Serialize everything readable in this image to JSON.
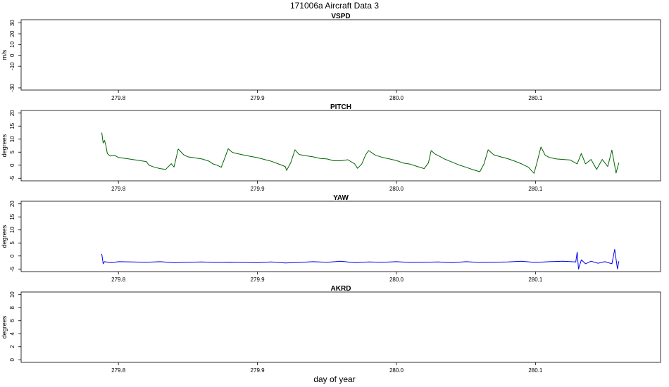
{
  "figure": {
    "title": "171006a   Aircraft Data 3",
    "xlabel": "day of year"
  },
  "chart_data": [
    {
      "type": "line",
      "title": "VSPD",
      "ylabel": "m/s",
      "ylim": [
        -32,
        33
      ],
      "yticks": [
        30,
        20,
        10,
        0,
        -10,
        -30
      ],
      "xlim": [
        279.73,
        280.19
      ],
      "xticks": [
        279.8,
        279.9,
        280.0,
        280.1
      ],
      "xtick_labels": [
        "279.8",
        "279.9",
        "280.0",
        "280.1"
      ],
      "color": "#000000",
      "series": []
    },
    {
      "type": "line",
      "title": "PITCH",
      "ylabel": "degrees",
      "ylim": [
        -6,
        21
      ],
      "yticks": [
        20,
        15,
        10,
        5,
        0,
        -5
      ],
      "xlim": [
        279.73,
        280.19
      ],
      "xticks": [
        279.8,
        279.9,
        280.0,
        280.1
      ],
      "xtick_labels": [
        "279.8",
        "279.9",
        "280.0",
        "280.1"
      ],
      "color": "#006400",
      "series": [
        {
          "x": [
            279.788,
            279.789,
            279.79,
            279.791,
            279.792,
            279.794,
            279.797,
            279.8,
            279.805,
            279.81,
            279.815,
            279.82,
            279.822,
            279.826,
            279.83,
            279.834,
            279.838,
            279.84,
            279.843,
            279.847,
            279.85,
            279.855,
            279.86,
            279.865,
            279.868,
            279.871,
            279.874,
            279.875,
            279.879,
            279.882,
            279.885,
            279.89,
            279.895,
            279.9,
            279.905,
            279.91,
            279.915,
            279.92,
            279.921,
            279.924,
            279.927,
            279.93,
            279.935,
            279.94,
            279.945,
            279.95,
            279.955,
            279.96,
            279.965,
            279.97,
            279.972,
            279.975,
            279.978,
            279.98,
            279.985,
            279.99,
            279.995,
            280.0,
            280.005,
            280.01,
            280.015,
            280.02,
            280.023,
            280.025,
            280.028,
            280.03,
            280.035,
            280.04,
            280.045,
            280.05,
            280.055,
            280.06,
            280.063,
            280.066,
            280.07,
            280.075,
            280.08,
            280.085,
            280.09,
            280.095,
            280.097,
            280.099,
            280.101,
            280.104,
            280.107,
            280.11,
            280.115,
            280.12,
            280.125,
            280.13,
            280.133,
            280.136,
            280.14,
            280.144,
            280.148,
            280.152,
            280.155,
            280.158,
            280.16
          ],
          "y": [
            12.5,
            8.5,
            9.5,
            7.5,
            4.5,
            3.5,
            3.8,
            3.0,
            2.6,
            2.2,
            1.8,
            1.4,
            0.0,
            -0.8,
            -1.3,
            -1.6,
            0.6,
            -0.7,
            6.2,
            4.0,
            3.2,
            2.8,
            2.4,
            1.6,
            0.5,
            0.0,
            -0.8,
            0.6,
            6.3,
            4.9,
            4.5,
            3.9,
            3.4,
            2.9,
            2.2,
            1.5,
            0.5,
            -0.5,
            -2.0,
            1.0,
            5.9,
            4.1,
            3.6,
            3.2,
            2.6,
            2.4,
            1.7,
            1.7,
            2.1,
            0.5,
            -1.2,
            0.4,
            4.1,
            5.6,
            3.8,
            3.0,
            2.4,
            1.8,
            0.8,
            0.4,
            -0.5,
            -1.3,
            0.9,
            5.6,
            4.2,
            3.7,
            2.3,
            1.2,
            0.1,
            -0.8,
            -1.7,
            -2.5,
            0.5,
            5.9,
            4.0,
            3.2,
            2.5,
            1.6,
            0.5,
            -0.8,
            -2.0,
            -3.1,
            0.8,
            7.0,
            3.8,
            3.0,
            2.4,
            2.2,
            2.0,
            0.5,
            4.5,
            0.5,
            2.2,
            -1.6,
            2.2,
            -0.5,
            5.8,
            -3.0,
            1.0
          ]
        }
      ]
    },
    {
      "type": "line",
      "title": "YAW",
      "ylabel": "degrees",
      "ylim": [
        -6,
        21
      ],
      "yticks": [
        20,
        15,
        10,
        5,
        0,
        -5
      ],
      "xlim": [
        279.73,
        280.19
      ],
      "xticks": [
        279.8,
        279.9,
        280.0,
        280.1
      ],
      "xtick_labels": [
        "279.8",
        "279.9",
        "280.0",
        "280.1"
      ],
      "color": "#0000ee",
      "series": [
        {
          "x": [
            279.788,
            279.789,
            279.79,
            279.795,
            279.8,
            279.81,
            279.82,
            279.83,
            279.84,
            279.85,
            279.86,
            279.87,
            279.88,
            279.89,
            279.9,
            279.91,
            279.92,
            279.93,
            279.94,
            279.95,
            279.96,
            279.97,
            279.98,
            279.99,
            280.0,
            280.01,
            280.02,
            280.03,
            280.04,
            280.05,
            280.06,
            280.07,
            280.08,
            280.09,
            280.1,
            280.11,
            280.12,
            280.129,
            280.13,
            280.131,
            280.133,
            280.136,
            280.14,
            280.145,
            280.15,
            280.155,
            280.157,
            280.159,
            280.16
          ],
          "y": [
            0.8,
            -3.0,
            -2.2,
            -2.6,
            -2.2,
            -2.3,
            -2.4,
            -2.2,
            -2.6,
            -2.4,
            -2.3,
            -2.5,
            -2.4,
            -2.5,
            -2.6,
            -2.3,
            -2.7,
            -2.5,
            -2.2,
            -2.4,
            -2.0,
            -2.6,
            -2.3,
            -2.4,
            -2.2,
            -2.5,
            -2.4,
            -2.3,
            -2.6,
            -2.2,
            -2.5,
            -2.4,
            -2.3,
            -2.0,
            -2.5,
            -2.2,
            -2.0,
            -2.3,
            1.5,
            -5.0,
            -1.5,
            -3.0,
            -2.0,
            -2.8,
            -2.2,
            -3.0,
            2.5,
            -5.0,
            -2.0
          ]
        }
      ]
    },
    {
      "type": "line",
      "title": "AKRD",
      "ylabel": "degrees",
      "ylim": [
        -0.4,
        10.4
      ],
      "yticks": [
        10,
        8,
        6,
        4,
        2,
        0
      ],
      "xlim": [
        279.73,
        280.19
      ],
      "xticks": [
        279.8,
        279.9,
        280.0,
        280.1
      ],
      "xtick_labels": [
        "279.8",
        "279.9",
        "280.0",
        "280.1"
      ],
      "color": "#000000",
      "series": []
    }
  ]
}
